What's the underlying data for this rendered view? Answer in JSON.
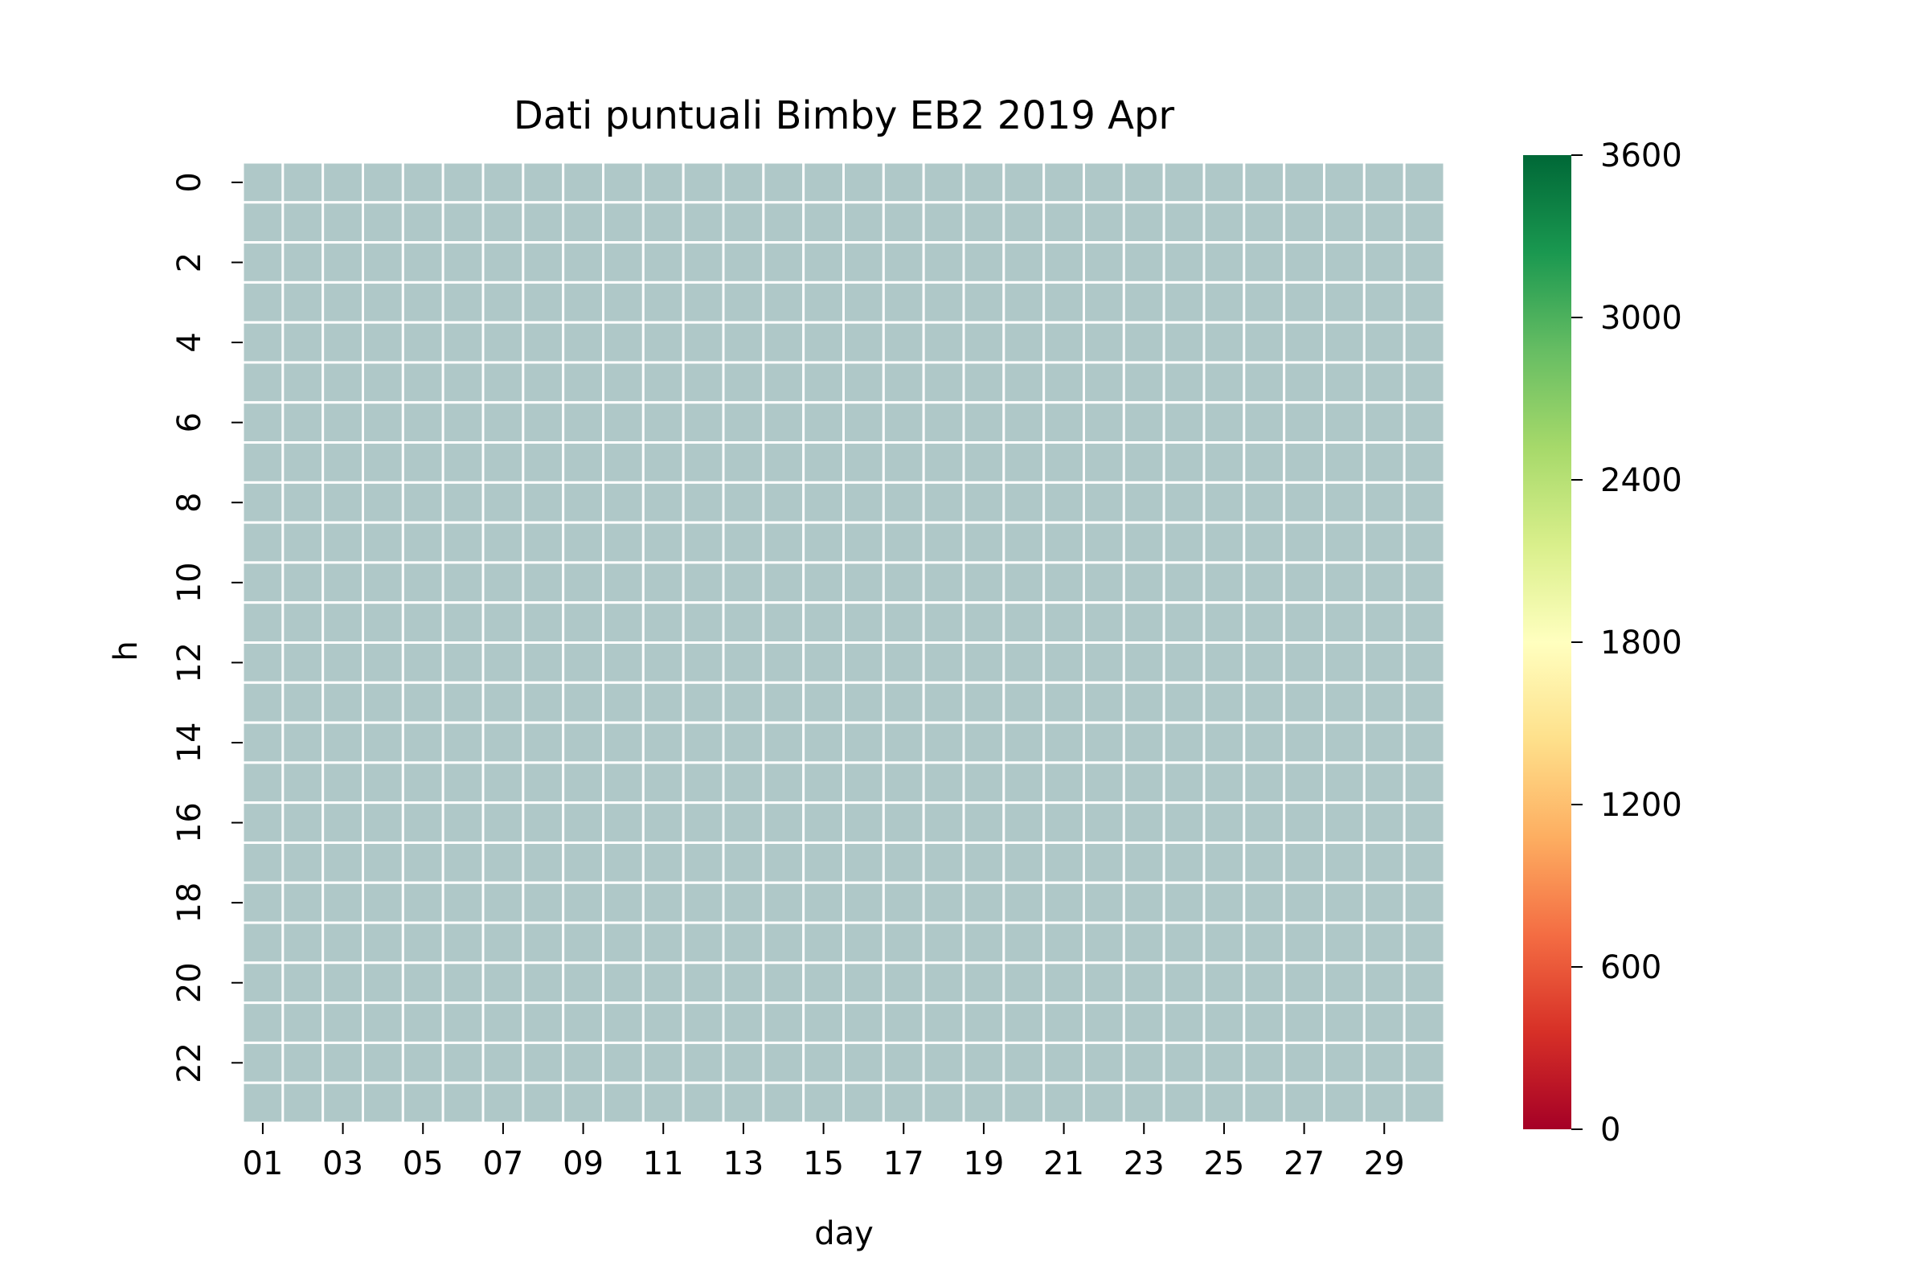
{
  "chart_data": {
    "type": "heatmap",
    "title": "Dati puntuali Bimby EB2 2019 Apr",
    "xlabel": "day",
    "ylabel": "h",
    "x_categories": [
      "01",
      "02",
      "03",
      "04",
      "05",
      "06",
      "07",
      "08",
      "09",
      "10",
      "11",
      "12",
      "13",
      "14",
      "15",
      "16",
      "17",
      "18",
      "19",
      "20",
      "21",
      "22",
      "23",
      "24",
      "25",
      "26",
      "27",
      "28",
      "29",
      "30"
    ],
    "x_tick_labels": [
      "01",
      "03",
      "05",
      "07",
      "09",
      "11",
      "13",
      "15",
      "17",
      "19",
      "21",
      "23",
      "25",
      "27",
      "29"
    ],
    "y_categories": [
      "0",
      "1",
      "2",
      "3",
      "4",
      "5",
      "6",
      "7",
      "8",
      "9",
      "10",
      "11",
      "12",
      "13",
      "14",
      "15",
      "16",
      "17",
      "18",
      "19",
      "20",
      "21",
      "22",
      "23"
    ],
    "y_tick_labels": [
      "0",
      "2",
      "4",
      "6",
      "8",
      "10",
      "12",
      "14",
      "16",
      "18",
      "20",
      "22"
    ],
    "values": "all cells missing (no data)",
    "missing_color": "#afc8c8",
    "cell_border_color": "#ffffff",
    "colorbar": {
      "min": 0,
      "max": 3600,
      "tick_labels": [
        "0",
        "600",
        "1200",
        "1800",
        "2400",
        "3000",
        "3600"
      ],
      "colormap": "RdYlGn",
      "stops": [
        "#a50026",
        "#d73027",
        "#f46d43",
        "#fdae61",
        "#fee08b",
        "#ffffbf",
        "#d9ef8b",
        "#a6d96a",
        "#66bd63",
        "#1a9850",
        "#006837"
      ]
    }
  }
}
